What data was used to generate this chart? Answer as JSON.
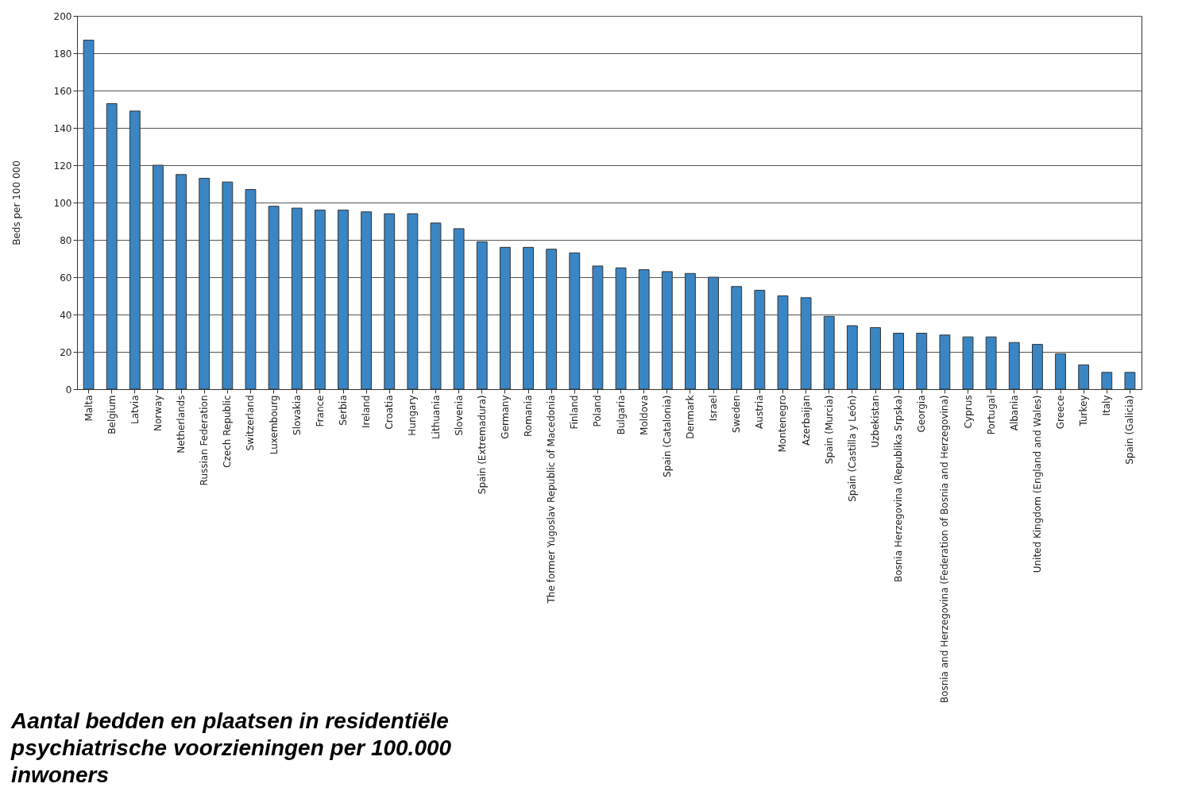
{
  "chart_data": {
    "type": "bar",
    "title": "Aantal bedden en plaatsen in residentiële psychiatrische voorzieningen per 100.000 inwoners",
    "ylabel": "Beds per 100 000",
    "categories": [
      "Malta",
      "Belgium",
      "Latvia",
      "Norway",
      "Netherlands",
      "Russian Federation",
      "Czech Republic",
      "Switzerland",
      "Luxembourg",
      "Slovakia",
      "France",
      "Serbia",
      "Ireland",
      "Croatia",
      "Hungary",
      "Lithuania",
      "Slovenia",
      "Spain (Extremadura)",
      "Germany",
      "Romania",
      "The former Yugoslav Republic of Macedonia",
      "Finland",
      "Poland",
      "Bulgaria",
      "Moldova",
      "Spain (Catalonia)",
      "Denmark",
      "Israel",
      "Sweden",
      "Austria",
      "Montenegro",
      "Azerbaijan",
      "Spain (Murcia)",
      "Spain (Castilla y León)",
      "Uzbekistan",
      "Bosnia Herzegovina (Republika Srpska)",
      "Georgia",
      "Bosnia and Herzegovina (Federation of Bosnia and Herzegovina)",
      "Cyprus",
      "Portugal",
      "Albania",
      "United Kingdom (England and Wales)",
      "Greece",
      "Turkey",
      "Italy",
      "Spain (Galicia)"
    ],
    "values": [
      187,
      153,
      149,
      120,
      115,
      113,
      111,
      107,
      98,
      97,
      96,
      96,
      95,
      94,
      94,
      89,
      86,
      79,
      76,
      76,
      75,
      73,
      66,
      65,
      64,
      63,
      62,
      60,
      55,
      53,
      50,
      49,
      39,
      34,
      33,
      30,
      30,
      29,
      28,
      28,
      25,
      24,
      19,
      13,
      9,
      9
    ],
    "color": "#3a86c4",
    "ylim": [
      0,
      200
    ],
    "yticks": [
      0,
      20,
      40,
      60,
      80,
      100,
      120,
      140,
      160,
      180,
      200
    ],
    "grid": "y"
  }
}
